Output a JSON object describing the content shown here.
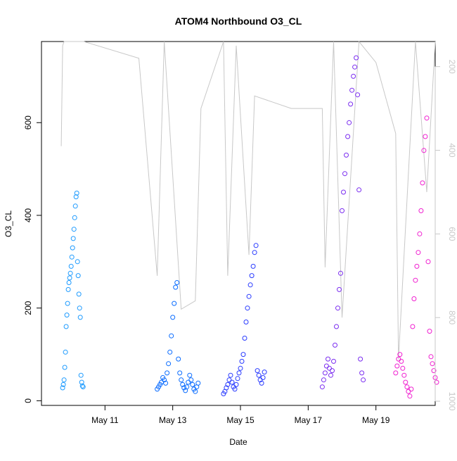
{
  "chart_data": {
    "type": "scatter",
    "title": "ATOM4 Northbound O3_CL",
    "xlabel": "Date",
    "ylabel": "O3_CL",
    "x_ticks": [
      "May 11",
      "May 13",
      "May 15",
      "May 17",
      "May 19"
    ],
    "xlim": [
      "2016-05-09T03:00",
      "2016-05-20T18:00"
    ],
    "ylim": [
      -10,
      775
    ],
    "y_ticks": [
      0,
      200,
      400,
      600
    ],
    "y2_ticks": [
      200,
      400,
      600,
      800,
      1000
    ],
    "y2lim": [
      1010,
      140
    ],
    "grid": false,
    "series": [
      {
        "color": "#1e9bff",
        "points": [
          [
            "2016-05-09T18:00",
            28
          ],
          [
            "2016-05-09T18:30",
            35
          ],
          [
            "2016-05-09T19:00",
            45
          ],
          [
            "2016-05-09T19:30",
            72
          ],
          [
            "2016-05-09T20:00",
            105
          ],
          [
            "2016-05-09T20:30",
            160
          ],
          [
            "2016-05-09T21:00",
            185
          ],
          [
            "2016-05-09T21:30",
            210
          ],
          [
            "2016-05-09T22:00",
            240
          ],
          [
            "2016-05-09T22:30",
            255
          ],
          [
            "2016-05-09T23:00",
            265
          ],
          [
            "2016-05-09T23:30",
            275
          ],
          [
            "2016-05-10T00:00",
            290
          ],
          [
            "2016-05-10T00:30",
            310
          ],
          [
            "2016-05-10T01:00",
            330
          ],
          [
            "2016-05-10T01:30",
            350
          ],
          [
            "2016-05-10T02:00",
            370
          ],
          [
            "2016-05-10T02:30",
            395
          ],
          [
            "2016-05-10T03:00",
            420
          ],
          [
            "2016-05-10T03:30",
            440
          ],
          [
            "2016-05-10T04:00",
            448
          ],
          [
            "2016-05-10T04:30",
            300
          ],
          [
            "2016-05-10T05:00",
            270
          ],
          [
            "2016-05-10T05:30",
            230
          ],
          [
            "2016-05-10T06:00",
            200
          ],
          [
            "2016-05-10T06:30",
            180
          ],
          [
            "2016-05-10T07:00",
            55
          ],
          [
            "2016-05-10T07:30",
            40
          ],
          [
            "2016-05-10T08:00",
            32
          ],
          [
            "2016-05-10T08:30",
            30
          ]
        ]
      },
      {
        "color": "#0a6cff",
        "points": [
          [
            "2016-05-12T13:00",
            25
          ],
          [
            "2016-05-12T14:00",
            30
          ],
          [
            "2016-05-12T15:00",
            35
          ],
          [
            "2016-05-12T16:00",
            40
          ],
          [
            "2016-05-12T17:00",
            50
          ],
          [
            "2016-05-12T18:00",
            45
          ],
          [
            "2016-05-12T19:00",
            38
          ],
          [
            "2016-05-12T20:00",
            60
          ],
          [
            "2016-05-12T21:00",
            80
          ],
          [
            "2016-05-12T22:00",
            105
          ],
          [
            "2016-05-12T23:00",
            140
          ],
          [
            "2016-05-13T00:00",
            180
          ],
          [
            "2016-05-13T01:00",
            210
          ],
          [
            "2016-05-13T02:00",
            245
          ],
          [
            "2016-05-13T03:00",
            255
          ],
          [
            "2016-05-13T04:00",
            90
          ],
          [
            "2016-05-13T05:00",
            60
          ],
          [
            "2016-05-13T06:00",
            45
          ],
          [
            "2016-05-13T07:00",
            35
          ],
          [
            "2016-05-13T08:00",
            28
          ],
          [
            "2016-05-13T09:00",
            22
          ],
          [
            "2016-05-13T10:00",
            30
          ],
          [
            "2016-05-13T11:00",
            40
          ],
          [
            "2016-05-13T12:00",
            55
          ],
          [
            "2016-05-13T13:00",
            45
          ],
          [
            "2016-05-13T14:00",
            35
          ],
          [
            "2016-05-13T15:00",
            25
          ],
          [
            "2016-05-13T16:00",
            20
          ],
          [
            "2016-05-13T17:00",
            30
          ],
          [
            "2016-05-13T18:00",
            38
          ]
        ]
      },
      {
        "color": "#2a3cff",
        "points": [
          [
            "2016-05-14T12:00",
            15
          ],
          [
            "2016-05-14T13:00",
            20
          ],
          [
            "2016-05-14T14:00",
            28
          ],
          [
            "2016-05-14T15:00",
            35
          ],
          [
            "2016-05-14T16:00",
            45
          ],
          [
            "2016-05-14T17:00",
            55
          ],
          [
            "2016-05-14T18:00",
            40
          ],
          [
            "2016-05-14T19:00",
            30
          ],
          [
            "2016-05-14T20:00",
            25
          ],
          [
            "2016-05-14T21:00",
            35
          ],
          [
            "2016-05-14T22:00",
            48
          ],
          [
            "2016-05-14T23:00",
            60
          ],
          [
            "2016-05-15T00:00",
            70
          ],
          [
            "2016-05-15T01:00",
            85
          ],
          [
            "2016-05-15T02:00",
            100
          ],
          [
            "2016-05-15T03:00",
            135
          ],
          [
            "2016-05-15T04:00",
            170
          ],
          [
            "2016-05-15T05:00",
            200
          ],
          [
            "2016-05-15T06:00",
            225
          ],
          [
            "2016-05-15T07:00",
            250
          ],
          [
            "2016-05-15T08:00",
            270
          ],
          [
            "2016-05-15T09:00",
            290
          ],
          [
            "2016-05-15T10:00",
            320
          ],
          [
            "2016-05-15T11:00",
            335
          ],
          [
            "2016-05-15T12:00",
            65
          ],
          [
            "2016-05-15T13:00",
            55
          ],
          [
            "2016-05-15T14:00",
            45
          ],
          [
            "2016-05-15T15:00",
            38
          ],
          [
            "2016-05-15T16:00",
            50
          ],
          [
            "2016-05-15T17:00",
            62
          ]
        ]
      },
      {
        "color": "#7a2cf0",
        "points": [
          [
            "2016-05-17T10:00",
            30
          ],
          [
            "2016-05-17T11:00",
            45
          ],
          [
            "2016-05-17T12:00",
            60
          ],
          [
            "2016-05-17T13:00",
            75
          ],
          [
            "2016-05-17T14:00",
            90
          ],
          [
            "2016-05-17T15:00",
            70
          ],
          [
            "2016-05-17T16:00",
            55
          ],
          [
            "2016-05-17T17:00",
            65
          ],
          [
            "2016-05-17T18:00",
            85
          ],
          [
            "2016-05-17T19:00",
            120
          ],
          [
            "2016-05-17T20:00",
            160
          ],
          [
            "2016-05-17T21:00",
            200
          ],
          [
            "2016-05-17T22:00",
            240
          ],
          [
            "2016-05-17T23:00",
            275
          ],
          [
            "2016-05-18T00:00",
            410
          ],
          [
            "2016-05-18T01:00",
            450
          ],
          [
            "2016-05-18T02:00",
            490
          ],
          [
            "2016-05-18T03:00",
            530
          ],
          [
            "2016-05-18T04:00",
            570
          ],
          [
            "2016-05-18T05:00",
            600
          ],
          [
            "2016-05-18T06:00",
            640
          ],
          [
            "2016-05-18T07:00",
            670
          ],
          [
            "2016-05-18T08:00",
            700
          ],
          [
            "2016-05-18T09:00",
            720
          ],
          [
            "2016-05-18T10:00",
            740
          ],
          [
            "2016-05-18T11:00",
            660
          ],
          [
            "2016-05-18T12:00",
            455
          ],
          [
            "2016-05-18T13:00",
            90
          ],
          [
            "2016-05-18T14:00",
            60
          ],
          [
            "2016-05-18T15:00",
            45
          ]
        ]
      },
      {
        "color": "#f020d0",
        "points": [
          [
            "2016-05-19T14:00",
            60
          ],
          [
            "2016-05-19T15:00",
            75
          ],
          [
            "2016-05-19T16:00",
            90
          ],
          [
            "2016-05-19T17:00",
            100
          ],
          [
            "2016-05-19T18:00",
            85
          ],
          [
            "2016-05-19T19:00",
            70
          ],
          [
            "2016-05-19T20:00",
            55
          ],
          [
            "2016-05-19T21:00",
            40
          ],
          [
            "2016-05-19T22:00",
            30
          ],
          [
            "2016-05-19T23:00",
            20
          ],
          [
            "2016-05-20T00:00",
            10
          ],
          [
            "2016-05-20T01:00",
            25
          ],
          [
            "2016-05-20T02:00",
            160
          ],
          [
            "2016-05-20T03:00",
            220
          ],
          [
            "2016-05-20T04:00",
            260
          ],
          [
            "2016-05-20T05:00",
            290
          ],
          [
            "2016-05-20T06:00",
            320
          ],
          [
            "2016-05-20T07:00",
            360
          ],
          [
            "2016-05-20T08:00",
            410
          ],
          [
            "2016-05-20T09:00",
            470
          ],
          [
            "2016-05-20T10:00",
            540
          ],
          [
            "2016-05-20T11:00",
            570
          ],
          [
            "2016-05-20T12:00",
            610
          ],
          [
            "2016-05-20T13:00",
            300
          ],
          [
            "2016-05-20T14:00",
            150
          ],
          [
            "2016-05-20T15:00",
            95
          ],
          [
            "2016-05-20T16:00",
            80
          ],
          [
            "2016-05-20T17:00",
            65
          ],
          [
            "2016-05-20T18:00",
            50
          ],
          [
            "2016-05-20T19:00",
            40
          ]
        ]
      }
    ],
    "secondary_line": {
      "color": "#c8c8c8",
      "points": [
        [
          "2016-05-09T17:00",
          390
        ],
        [
          "2016-05-09T18:00",
          150
        ],
        [
          "2016-05-09T19:00",
          140
        ],
        [
          "2016-05-10T09:00",
          140
        ],
        [
          "2016-05-12T00:00",
          180
        ],
        [
          "2016-05-12T13:00",
          700
        ],
        [
          "2016-05-12T18:00",
          140
        ],
        [
          "2016-05-13T06:00",
          780
        ],
        [
          "2016-05-13T16:00",
          760
        ],
        [
          "2016-05-13T20:00",
          300
        ],
        [
          "2016-05-14T12:00",
          140
        ],
        [
          "2016-05-14T15:00",
          700
        ],
        [
          "2016-05-14T21:00",
          150
        ],
        [
          "2016-05-15T06:00",
          650
        ],
        [
          "2016-05-15T10:00",
          270
        ],
        [
          "2016-05-16T12:00",
          300
        ],
        [
          "2016-05-17T10:00",
          300
        ],
        [
          "2016-05-17T12:00",
          680
        ],
        [
          "2016-05-17T18:00",
          140
        ],
        [
          "2016-05-18T00:00",
          800
        ],
        [
          "2016-05-18T12:00",
          140
        ],
        [
          "2016-05-19T00:00",
          190
        ],
        [
          "2016-05-19T14:00",
          360
        ],
        [
          "2016-05-19T16:00",
          900
        ],
        [
          "2016-05-20T04:00",
          140
        ],
        [
          "2016-05-20T12:00",
          500
        ],
        [
          "2016-05-20T18:00",
          140
        ]
      ]
    }
  }
}
